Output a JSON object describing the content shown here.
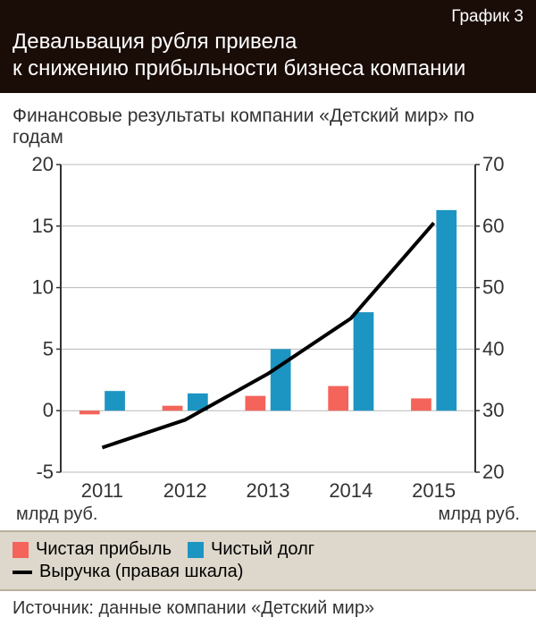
{
  "header": {
    "chart_number": "График 3",
    "title": "Девальвация рубля привела\nк снижению прибыльности бизнеса компании"
  },
  "subtitle": "Финансовые результаты компании «Детский мир» по годам",
  "chart": {
    "type": "bar+line-dual-axis",
    "categories": [
      "2011",
      "2012",
      "2013",
      "2014",
      "2015"
    ],
    "left_axis": {
      "min": -5,
      "max": 20,
      "tick_step": 5,
      "unit_label": "млрд руб."
    },
    "right_axis": {
      "min": 20,
      "max": 70,
      "tick_step": 10,
      "unit_label": "млрд руб."
    },
    "series": {
      "profit": {
        "label": "Чистая прибыль",
        "color": "#f4645a",
        "axis": "left",
        "values": [
          -0.3,
          0.4,
          1.2,
          2.0,
          1.0
        ]
      },
      "debt": {
        "label": "Чистый долг",
        "color": "#1d95c2",
        "axis": "left",
        "values": [
          1.6,
          1.4,
          5.0,
          8.0,
          16.3
        ]
      },
      "revenue": {
        "label": "Выручка (правая шкала)",
        "color": "#000000",
        "axis": "right",
        "values": [
          24,
          28.5,
          36,
          45,
          60.5
        ],
        "line_width": 4
      }
    },
    "style": {
      "background_color": "#ffffff",
      "grid_color": "#b8b8b8",
      "axis_color": "#333333",
      "tick_fontsize": 22,
      "category_fontsize": 22,
      "bar_group_width": 0.55,
      "bar_gap": 0.06
    }
  },
  "legend": {
    "items": [
      {
        "key": "profit",
        "style": "square"
      },
      {
        "key": "debt",
        "style": "square"
      },
      {
        "key": "revenue",
        "style": "line"
      }
    ]
  },
  "source": "Источник: данные компании «Детский мир»"
}
